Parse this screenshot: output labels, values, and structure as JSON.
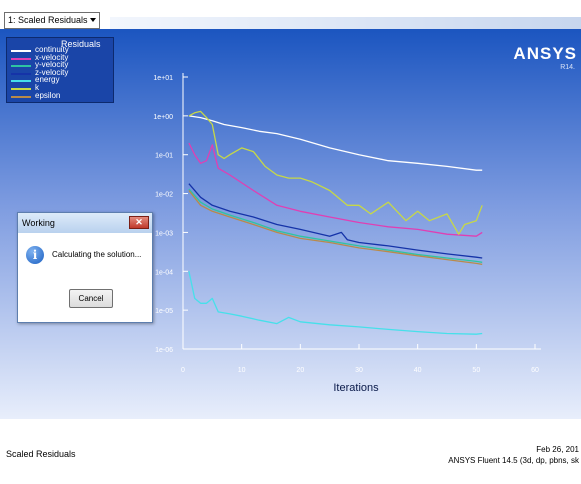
{
  "window": {
    "view_selector": "1: Scaled Residuals"
  },
  "branding": {
    "logo": "ANSYS",
    "release": "R14."
  },
  "dialog": {
    "title": "Working",
    "close_label": "✕",
    "message": "Calculating the solution...",
    "cancel_label": "Cancel",
    "icon": "info-icon"
  },
  "footer": {
    "plot_title": "Scaled Residuals",
    "date": "Feb 26, 201",
    "version": "ANSYS Fluent 14.5 (3d, dp, pbns, sk"
  },
  "colors": {
    "background_top": "#1b55c0",
    "background_bottom": "#e8eefb",
    "continuity": "#ffffff",
    "x-velocity": "#e03fb3",
    "y-velocity": "#2ec4a2",
    "z-velocity": "#1533a8",
    "energy": "#46e0ea",
    "k": "#c7d846",
    "epsilon": "#b98a4a"
  },
  "chart_data": {
    "type": "line",
    "title": "",
    "xlabel": "Iterations",
    "ylabel": "",
    "legend_title": "Residuals",
    "legend_position": "top-left",
    "xlim": [
      0,
      60
    ],
    "ylim": [
      1e-06,
      10
    ],
    "y_scale": "log",
    "x_ticks": [
      "0",
      "10",
      "20",
      "30",
      "40",
      "50",
      "60"
    ],
    "y_ticks": [
      "1e+01",
      "1e+00",
      "1e-01",
      "1e-02",
      "1e-03",
      "1e-04",
      "1e-05",
      "1e-06"
    ],
    "grid": false,
    "series": [
      {
        "name": "continuity",
        "color": "#ffffff",
        "x": [
          1,
          3,
          5,
          7,
          10,
          13,
          16,
          20,
          25,
          30,
          35,
          40,
          45,
          50,
          51
        ],
        "y": [
          1.0,
          0.9,
          0.75,
          0.6,
          0.5,
          0.4,
          0.35,
          0.25,
          0.15,
          0.1,
          0.07,
          0.06,
          0.05,
          0.04,
          0.04
        ]
      },
      {
        "name": "x-velocity",
        "color": "#e03fb3",
        "x": [
          1,
          2,
          3,
          4,
          5,
          6,
          8,
          12,
          16,
          20,
          25,
          30,
          35,
          40,
          45,
          50,
          51
        ],
        "y": [
          0.2,
          0.1,
          0.06,
          0.07,
          0.18,
          0.045,
          0.03,
          0.012,
          0.005,
          0.0035,
          0.0025,
          0.0018,
          0.0014,
          0.0012,
          0.0009,
          0.0008,
          0.001
        ]
      },
      {
        "name": "y-velocity",
        "color": "#2ec4a2",
        "x": [
          1,
          3,
          5,
          8,
          12,
          16,
          20,
          25,
          30,
          35,
          40,
          45,
          50,
          51
        ],
        "y": [
          0.013,
          0.006,
          0.004,
          0.0028,
          0.0018,
          0.0011,
          0.0008,
          0.0006,
          0.00045,
          0.00035,
          0.00027,
          0.00022,
          0.00018,
          0.00017
        ]
      },
      {
        "name": "z-velocity",
        "color": "#1533a8",
        "x": [
          1,
          3,
          5,
          8,
          12,
          16,
          20,
          25,
          27,
          28,
          30,
          35,
          40,
          45,
          50,
          51
        ],
        "y": [
          0.018,
          0.008,
          0.005,
          0.0035,
          0.0025,
          0.0016,
          0.0012,
          0.0008,
          0.001,
          0.00065,
          0.00055,
          0.00045,
          0.00035,
          0.00028,
          0.00023,
          0.00022
        ]
      },
      {
        "name": "energy",
        "color": "#46e0ea",
        "x": [
          1,
          2,
          3,
          4,
          5,
          6,
          8,
          10,
          13,
          16,
          18,
          20,
          25,
          30,
          35,
          40,
          45,
          50,
          51
        ],
        "y": [
          0.0001,
          2e-05,
          1.5e-05,
          1.5e-05,
          2e-05,
          9e-06,
          8e-06,
          7e-06,
          5.5e-06,
          4.5e-06,
          6.5e-06,
          5e-06,
          4.2e-06,
          3.7e-06,
          3.2e-06,
          2.8e-06,
          2.5e-06,
          2.4e-06,
          2.5e-06
        ]
      },
      {
        "name": "k",
        "color": "#c7d846",
        "x": [
          1,
          2,
          3,
          4,
          5,
          6,
          7,
          8,
          10,
          12,
          14,
          16,
          18,
          20,
          22,
          25,
          28,
          30,
          32,
          35,
          38,
          40,
          42,
          45,
          47,
          48,
          50,
          51
        ],
        "y": [
          1.0,
          1.2,
          1.3,
          0.9,
          0.6,
          0.1,
          0.08,
          0.1,
          0.15,
          0.12,
          0.05,
          0.03,
          0.025,
          0.025,
          0.02,
          0.012,
          0.005,
          0.005,
          0.003,
          0.006,
          0.002,
          0.0035,
          0.002,
          0.003,
          0.0009,
          0.0016,
          0.002,
          0.005
        ]
      },
      {
        "name": "epsilon",
        "color": "#b98a4a",
        "x": [
          1,
          3,
          5,
          8,
          12,
          16,
          20,
          25,
          30,
          35,
          40,
          45,
          50,
          51
        ],
        "y": [
          0.012,
          0.005,
          0.0035,
          0.0025,
          0.0016,
          0.001,
          0.0007,
          0.00055,
          0.0004,
          0.00032,
          0.00025,
          0.0002,
          0.00016,
          0.00015
        ]
      }
    ]
  }
}
